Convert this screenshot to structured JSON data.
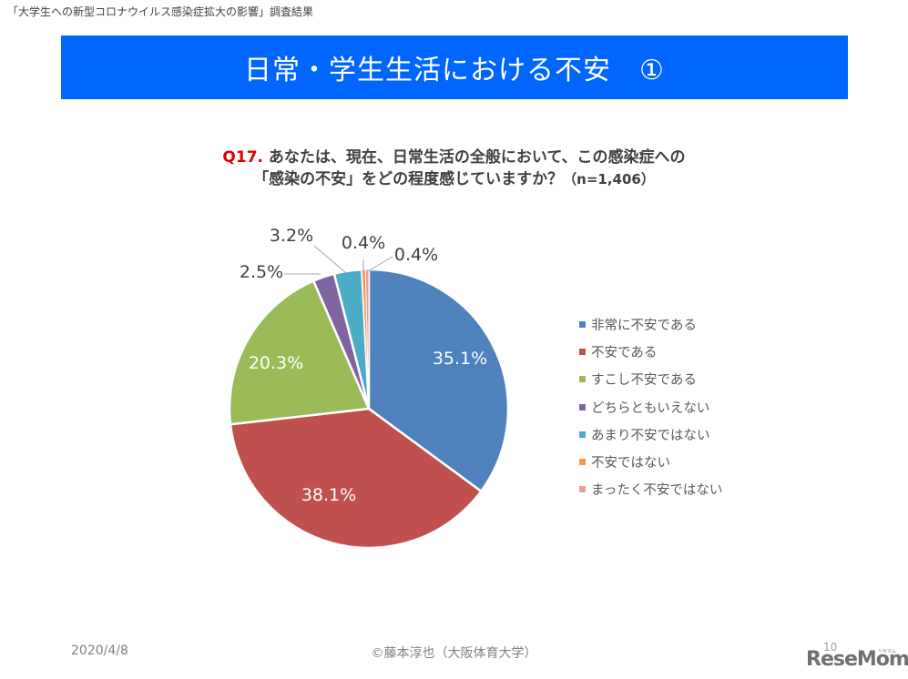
{
  "header": {
    "doc_title": "「大学生への新型コロナウイルス感染症拡大の影響」調査結果"
  },
  "banner": {
    "title": "日常・学生生活における不安　①",
    "color": "#0066ff"
  },
  "question": {
    "number": "Q17.",
    "line1": "あなたは、現在、日常生活の全般において、この感染症への",
    "line2": "「感染の不安」をどの程度感じていますか？",
    "sample": "（n=1,406）"
  },
  "chart_data": {
    "type": "pie",
    "title": "Q17. あなたは、現在、日常生活の全般において、この感染症への「感染の不安」をどの程度感じていますか？（n=1,406）",
    "start_angle": "12 o'clock, clockwise",
    "categories": [
      "非常に不安である",
      "不安である",
      "すこし不安である",
      "どちらともいえない",
      "あまり不安ではない",
      "不安ではない",
      "まったく不安ではない"
    ],
    "values": [
      35.1,
      38.1,
      20.3,
      2.5,
      3.2,
      0.4,
      0.4
    ],
    "labels": [
      "35.1%",
      "38.1%",
      "20.3%",
      "2.5%",
      "3.2%",
      "0.4%",
      "0.4%"
    ],
    "colors": [
      "#4f81bd",
      "#c0504d",
      "#9bbb59",
      "#8064a2",
      "#4bacc6",
      "#f79646",
      "#e6a09e"
    ],
    "legend_position": "right",
    "n": 1406
  },
  "legend": {
    "items": [
      {
        "label": "非常に不安である",
        "color": "#4f81bd"
      },
      {
        "label": "不安である",
        "color": "#c0504d"
      },
      {
        "label": "すこし不安である",
        "color": "#9bbb59"
      },
      {
        "label": "どちらともいえない",
        "color": "#8064a2"
      },
      {
        "label": "あまり不安ではない",
        "color": "#4bacc6"
      },
      {
        "label": "不安ではない",
        "color": "#f79646"
      },
      {
        "label": "まったく不安ではない",
        "color": "#e6a09e"
      }
    ]
  },
  "footer": {
    "date": "2020/4/8",
    "copyright": "©藤本淳也（大阪体育大学）",
    "page": "10",
    "logo": "ReseMom",
    "logo_sub": "リセマム"
  }
}
